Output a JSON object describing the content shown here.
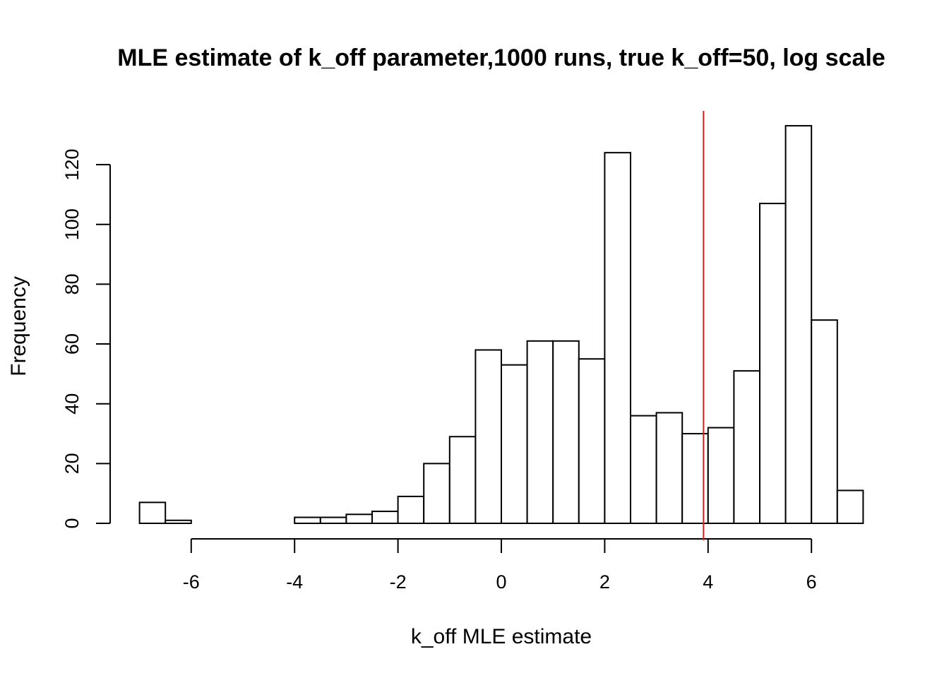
{
  "chart_data": {
    "type": "bar",
    "subtype": "histogram",
    "title": "MLE estimate of k_off parameter,1000 runs, true k_off=50, log scale",
    "xlabel": "k_off MLE estimate",
    "ylabel": "Frequency",
    "bin_width": 0.5,
    "bins": [
      {
        "x0": -7.0,
        "x1": -6.5,
        "count": 7
      },
      {
        "x0": -6.5,
        "x1": -6.0,
        "count": 1
      },
      {
        "x0": -6.0,
        "x1": -5.5,
        "count": 0
      },
      {
        "x0": -5.5,
        "x1": -5.0,
        "count": 0
      },
      {
        "x0": -5.0,
        "x1": -4.5,
        "count": 0
      },
      {
        "x0": -4.5,
        "x1": -4.0,
        "count": 0
      },
      {
        "x0": -4.0,
        "x1": -3.5,
        "count": 2
      },
      {
        "x0": -3.5,
        "x1": -3.0,
        "count": 2
      },
      {
        "x0": -3.0,
        "x1": -2.5,
        "count": 3
      },
      {
        "x0": -2.5,
        "x1": -2.0,
        "count": 4
      },
      {
        "x0": -2.0,
        "x1": -1.5,
        "count": 9
      },
      {
        "x0": -1.5,
        "x1": -1.0,
        "count": 20
      },
      {
        "x0": -1.0,
        "x1": -0.5,
        "count": 29
      },
      {
        "x0": -0.5,
        "x1": 0.0,
        "count": 58
      },
      {
        "x0": 0.0,
        "x1": 0.5,
        "count": 53
      },
      {
        "x0": 0.5,
        "x1": 1.0,
        "count": 61
      },
      {
        "x0": 1.0,
        "x1": 1.5,
        "count": 61
      },
      {
        "x0": 1.5,
        "x1": 2.0,
        "count": 55
      },
      {
        "x0": 2.0,
        "x1": 2.5,
        "count": 124
      },
      {
        "x0": 2.5,
        "x1": 3.0,
        "count": 36
      },
      {
        "x0": 3.0,
        "x1": 3.5,
        "count": 37
      },
      {
        "x0": 3.5,
        "x1": 4.0,
        "count": 30
      },
      {
        "x0": 4.0,
        "x1": 4.5,
        "count": 32
      },
      {
        "x0": 4.5,
        "x1": 5.0,
        "count": 51
      },
      {
        "x0": 5.0,
        "x1": 5.5,
        "count": 107
      },
      {
        "x0": 5.5,
        "x1": 6.0,
        "count": 133
      },
      {
        "x0": 6.0,
        "x1": 6.5,
        "count": 68
      },
      {
        "x0": 6.5,
        "x1": 7.0,
        "count": 11
      }
    ],
    "x_ticks": [
      "-6",
      "-4",
      "-2",
      "0",
      "2",
      "4",
      "6"
    ],
    "y_ticks": [
      "0",
      "20",
      "40",
      "60",
      "80",
      "100",
      "120"
    ],
    "xlim": [
      -7,
      7
    ],
    "ylim": [
      0,
      133
    ],
    "reference_line": {
      "x": 3.912,
      "color": "#e31a1c"
    },
    "bar_fill": "#ffffff",
    "bar_stroke": "#000000",
    "grid": false,
    "legend": "none"
  }
}
